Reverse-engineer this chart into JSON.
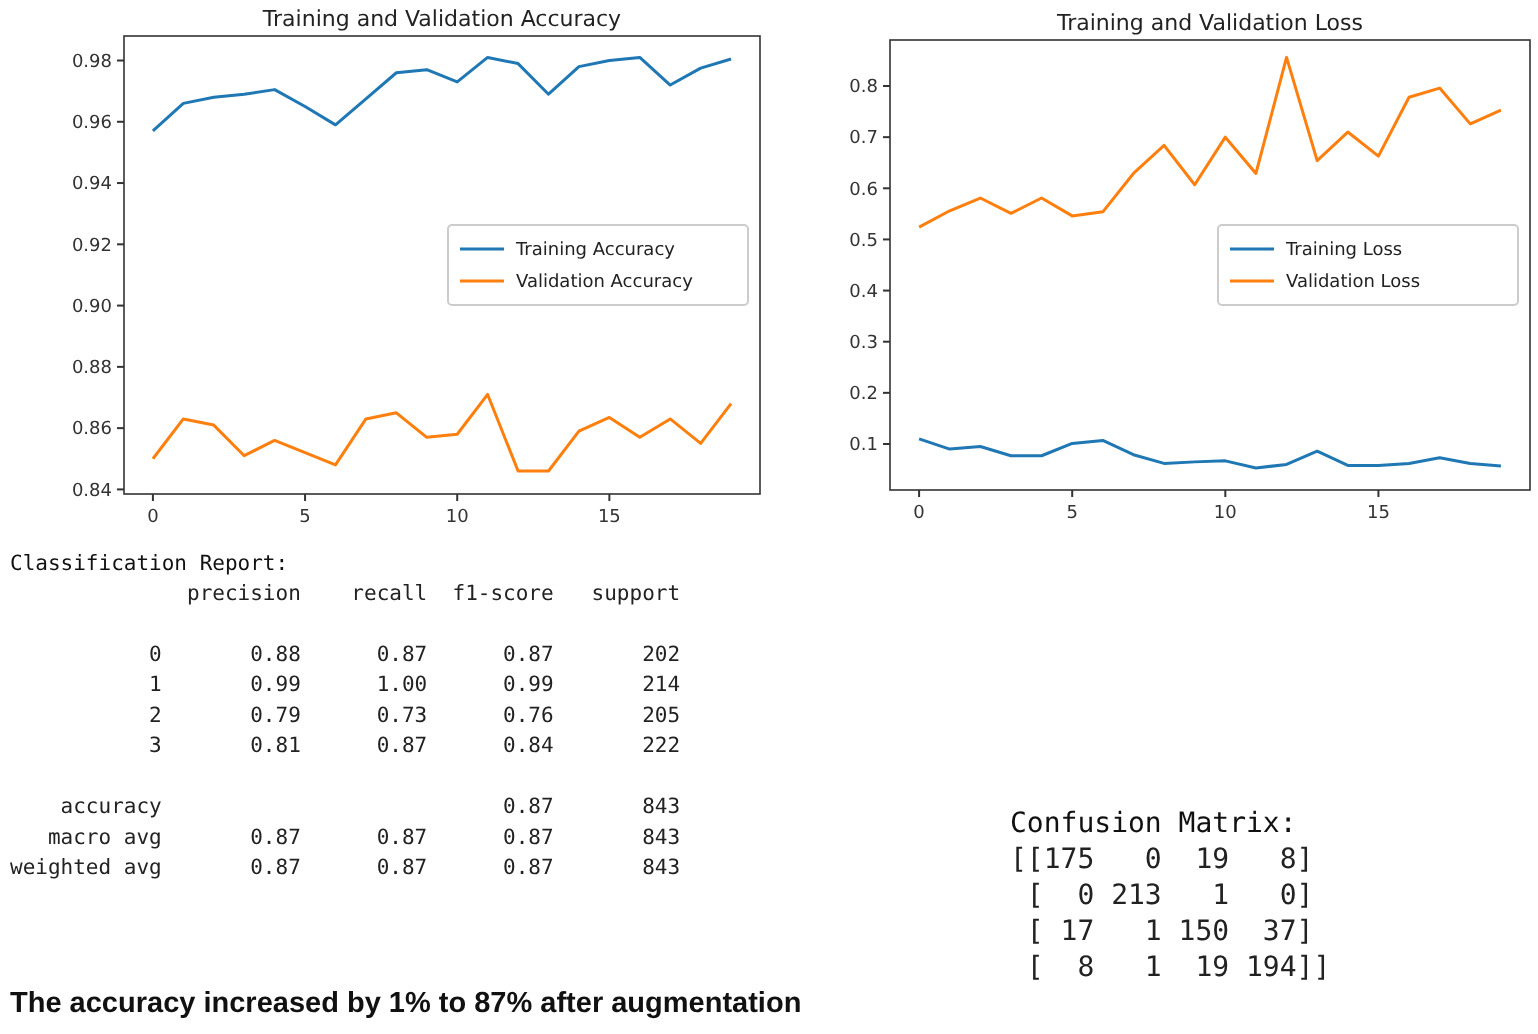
{
  "chart_data": [
    {
      "type": "line",
      "title": "Training and Validation Accuracy",
      "x": [
        0,
        1,
        2,
        3,
        4,
        5,
        6,
        7,
        8,
        9,
        10,
        11,
        12,
        13,
        14,
        15,
        16,
        17,
        18,
        19
      ],
      "series": [
        {
          "name": "Training Accuracy",
          "color": "#1f77b4",
          "values": [
            0.957,
            0.966,
            0.968,
            0.969,
            0.9705,
            0.965,
            0.959,
            0.9675,
            0.976,
            0.977,
            0.973,
            0.981,
            0.979,
            0.969,
            0.978,
            0.98,
            0.981,
            0.972,
            0.9775,
            0.9805
          ]
        },
        {
          "name": "Validation Accuracy",
          "color": "#ff7f0e",
          "values": [
            0.85,
            0.863,
            0.861,
            0.851,
            0.856,
            0.852,
            0.848,
            0.863,
            0.865,
            0.857,
            0.858,
            0.871,
            0.846,
            0.846,
            0.859,
            0.8635,
            0.857,
            0.863,
            0.855,
            0.868
          ]
        }
      ],
      "xlim": [
        -0.95,
        19.95
      ],
      "ylim": [
        0.8385,
        0.988
      ],
      "xticks": [
        0,
        5,
        10,
        15
      ],
      "yticks": [
        {
          "value": 0.84,
          "label": "0.84"
        },
        {
          "value": 0.86,
          "label": "0.86"
        },
        {
          "value": 0.88,
          "label": "0.88"
        },
        {
          "value": 0.9,
          "label": "0.90"
        },
        {
          "value": 0.92,
          "label": "0.92"
        },
        {
          "value": 0.94,
          "label": "0.94"
        },
        {
          "value": 0.96,
          "label": "0.96"
        },
        {
          "value": 0.98,
          "label": "0.98"
        }
      ],
      "legend": "right",
      "grid": false
    },
    {
      "type": "line",
      "title": "Training and Validation Loss",
      "x": [
        0,
        1,
        2,
        3,
        4,
        5,
        6,
        7,
        8,
        9,
        10,
        11,
        12,
        13,
        14,
        15,
        16,
        17,
        18,
        19
      ],
      "series": [
        {
          "name": "Training Loss",
          "color": "#1f77b4",
          "values": [
            0.11,
            0.09,
            0.095,
            0.077,
            0.077,
            0.101,
            0.107,
            0.079,
            0.062,
            0.065,
            0.067,
            0.053,
            0.06,
            0.086,
            0.058,
            0.058,
            0.062,
            0.073,
            0.062,
            0.057
          ]
        },
        {
          "name": "Validation Loss",
          "color": "#ff7f0e",
          "values": [
            0.524,
            0.556,
            0.581,
            0.551,
            0.581,
            0.546,
            0.554,
            0.629,
            0.684,
            0.607,
            0.7,
            0.629,
            0.856,
            0.654,
            0.71,
            0.663,
            0.778,
            0.796,
            0.726,
            0.753
          ]
        }
      ],
      "xlim": [
        -0.95,
        19.95
      ],
      "ylim": [
        0.01,
        0.89
      ],
      "xticks": [
        0,
        5,
        10,
        15
      ],
      "yticks": [
        {
          "value": 0.1,
          "label": "0.1"
        },
        {
          "value": 0.2,
          "label": "0.2"
        },
        {
          "value": 0.3,
          "label": "0.3"
        },
        {
          "value": 0.4,
          "label": "0.4"
        },
        {
          "value": 0.5,
          "label": "0.5"
        },
        {
          "value": 0.6,
          "label": "0.6"
        },
        {
          "value": 0.7,
          "label": "0.7"
        },
        {
          "value": 0.8,
          "label": "0.8"
        }
      ],
      "legend": "right",
      "grid": false
    },
    {
      "type": "other",
      "title": "Classification Report:",
      "annotations": [
        "              precision    recall  f1-score   support",
        "           0       0.88      0.87      0.87       202",
        "           1       0.99      1.00      0.99       214",
        "           2       0.79      0.73      0.76       205",
        "           3       0.81      0.87      0.84       222",
        "    accuracy                           0.87       843",
        "   macro avg       0.87      0.87      0.87       843",
        "weighted avg       0.87      0.87      0.87       843"
      ]
    },
    {
      "type": "other",
      "title": "Confusion Matrix:",
      "annotations": [
        "[[175   0  19   8]",
        " [  0 213   1   0]",
        " [ 17   1 150  37]",
        " [  8   1  19 194]]"
      ]
    },
    {
      "type": "other",
      "title": "The accuracy increased by 1% to 87% after augmentation"
    }
  ]
}
